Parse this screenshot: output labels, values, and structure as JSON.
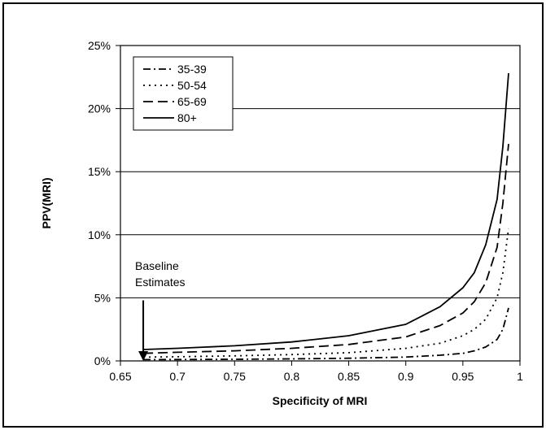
{
  "chart_data": {
    "type": "line",
    "title": "",
    "xlabel": "Specificity of MRI",
    "ylabel": "PPV(MRI)",
    "xlim": [
      0.65,
      1.0
    ],
    "ylim": [
      0,
      25
    ],
    "x_ticks": [
      "0.65",
      "0.7",
      "0.75",
      "0.8",
      "0.85",
      "0.9",
      "0.95",
      "1"
    ],
    "y_ticks": [
      "0%",
      "5%",
      "10%",
      "15%",
      "20%",
      "25%"
    ],
    "grid": "horizontal",
    "legend_position": "top-left",
    "annotation": {
      "lines": [
        "Baseline",
        "Estimates"
      ],
      "x": 0.67,
      "arrow_from_y": 4.8,
      "arrow_to_y": 0.0
    },
    "series": [
      {
        "name": "35-39",
        "dash": "dash-dot",
        "x": [
          0.67,
          0.7,
          0.75,
          0.8,
          0.85,
          0.9,
          0.93,
          0.95,
          0.96,
          0.97,
          0.98,
          0.985,
          0.99
        ],
        "y": [
          0.1,
          0.11,
          0.13,
          0.16,
          0.21,
          0.3,
          0.45,
          0.6,
          0.8,
          1.1,
          1.7,
          2.5,
          4.2
        ]
      },
      {
        "name": "50-54",
        "dash": "dotted",
        "x": [
          0.67,
          0.7,
          0.75,
          0.8,
          0.85,
          0.9,
          0.93,
          0.95,
          0.96,
          0.97,
          0.98,
          0.985,
          0.99
        ],
        "y": [
          0.3,
          0.33,
          0.4,
          0.5,
          0.65,
          1.0,
          1.4,
          2.0,
          2.5,
          3.3,
          5.0,
          7.0,
          10.5
        ]
      },
      {
        "name": "65-69",
        "dash": "dashed",
        "x": [
          0.67,
          0.7,
          0.75,
          0.8,
          0.85,
          0.9,
          0.93,
          0.95,
          0.96,
          0.97,
          0.98,
          0.985,
          0.99
        ],
        "y": [
          0.6,
          0.68,
          0.8,
          1.0,
          1.3,
          1.9,
          2.8,
          3.8,
          4.7,
          6.2,
          9.0,
          12.5,
          17.2
        ]
      },
      {
        "name": "80+",
        "dash": "solid",
        "x": [
          0.67,
          0.7,
          0.75,
          0.8,
          0.85,
          0.9,
          0.93,
          0.95,
          0.96,
          0.97,
          0.98,
          0.985,
          0.99
        ],
        "y": [
          0.9,
          1.0,
          1.2,
          1.5,
          2.0,
          2.9,
          4.3,
          5.8,
          7.0,
          9.2,
          12.8,
          17.0,
          22.8
        ]
      }
    ]
  }
}
